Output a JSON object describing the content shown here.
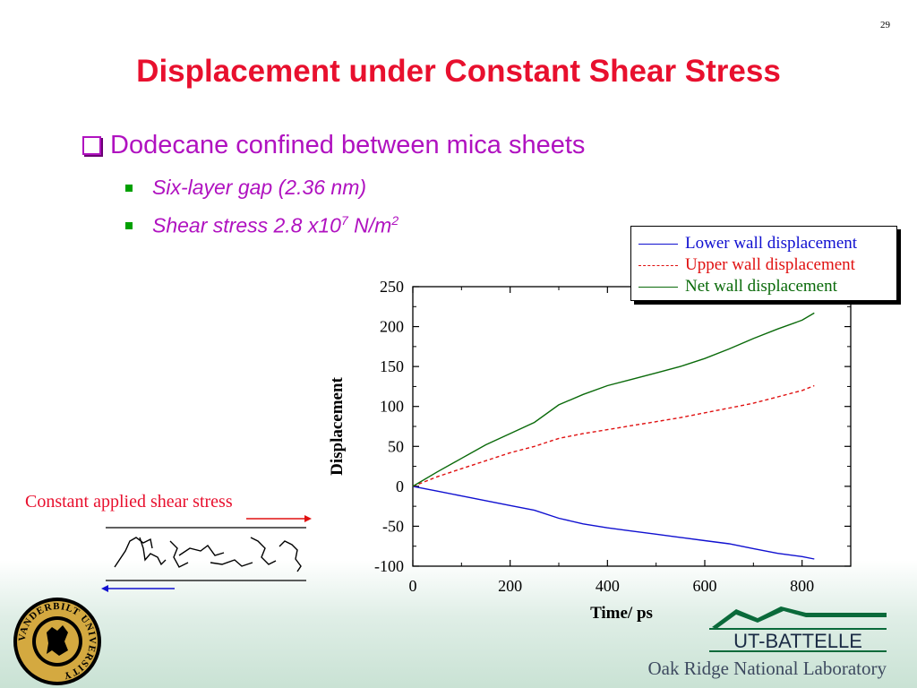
{
  "slide_number": "29",
  "title": "Displacement under Constant Shear Stress",
  "bullet_main": "Dodecane confined between mica sheets",
  "sub_bullets": {
    "gap": "Six-layer gap (2.36 nm)",
    "stress_prefix": "Shear stress 2.8 x10",
    "stress_exp": "7",
    "stress_unit": " N/m",
    "stress_unit_exp": "2"
  },
  "diagram": {
    "label": "Constant applied shear stress"
  },
  "footer": {
    "lab": "Oak Ridge National Laboratory",
    "battelle": "UT-BATTELLE",
    "vanderbilt": "VANDERBILT UNIVERSITY"
  },
  "colors": {
    "title": "#e8102e",
    "bullets": "#b012c0",
    "lower": "#1010d0",
    "upper": "#e01010",
    "net": "#0a6a0a"
  },
  "chart_data": {
    "type": "line",
    "xlabel": "Time/ ps",
    "ylabel": "Displacement",
    "xlim": [
      0,
      900
    ],
    "ylim": [
      -100,
      250
    ],
    "xticks": [
      0,
      200,
      400,
      600,
      800
    ],
    "yticks": [
      250,
      200,
      150,
      100,
      50,
      0,
      -50,
      -100
    ],
    "legend_position": "top-right",
    "series": [
      {
        "name": "Lower wall displacement",
        "style": "solid",
        "color": "#1010d0",
        "x": [
          0,
          50,
          100,
          150,
          200,
          250,
          300,
          350,
          400,
          450,
          500,
          550,
          600,
          650,
          700,
          750,
          800,
          825
        ],
        "y": [
          0,
          -6,
          -12,
          -18,
          -24,
          -30,
          -40,
          -47,
          -52,
          -56,
          -60,
          -64,
          -68,
          -72,
          -78,
          -84,
          -88,
          -91
        ]
      },
      {
        "name": "Upper wall displacement",
        "style": "dashed",
        "color": "#e01010",
        "x": [
          0,
          50,
          100,
          150,
          200,
          250,
          300,
          350,
          400,
          450,
          500,
          550,
          600,
          650,
          700,
          750,
          800,
          825
        ],
        "y": [
          0,
          12,
          22,
          32,
          42,
          50,
          60,
          66,
          71,
          76,
          81,
          86,
          92,
          98,
          104,
          112,
          120,
          126
        ]
      },
      {
        "name": "Net wall displacement",
        "style": "solid",
        "color": "#0a6a0a",
        "x": [
          0,
          50,
          100,
          150,
          200,
          250,
          300,
          350,
          400,
          450,
          500,
          550,
          600,
          650,
          700,
          750,
          800,
          825
        ],
        "y": [
          0,
          18,
          35,
          52,
          66,
          80,
          102,
          115,
          126,
          134,
          142,
          150,
          160,
          172,
          185,
          197,
          208,
          217
        ]
      }
    ]
  }
}
